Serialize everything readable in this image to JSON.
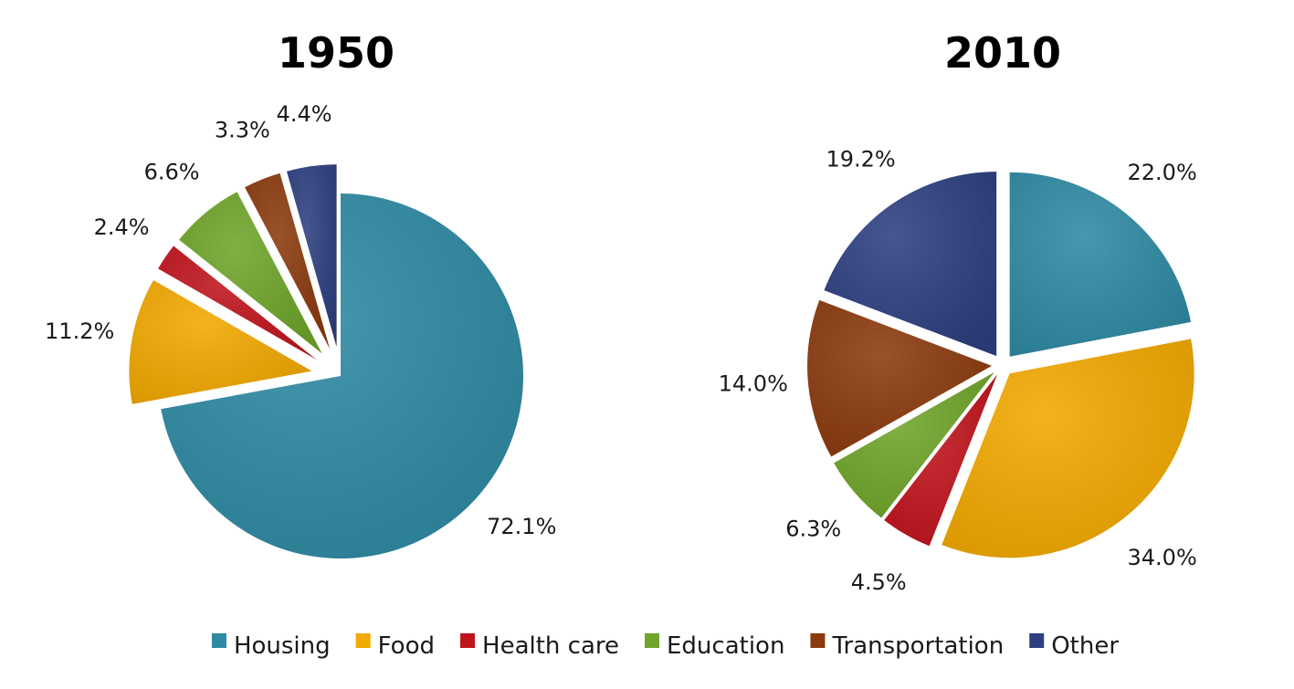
{
  "chart_data": [
    {
      "type": "pie",
      "title": "1950",
      "categories": [
        "Housing",
        "Food",
        "Health care",
        "Education",
        "Transportation",
        "Other"
      ],
      "values": [
        72.1,
        11.2,
        2.4,
        6.6,
        3.3,
        4.4
      ],
      "labels": [
        "72.1%",
        "11.2%",
        "2.4%",
        "6.6%",
        "3.3%",
        "4.4%"
      ],
      "exploded": [
        "Food",
        "Health care",
        "Education",
        "Transportation",
        "Other"
      ]
    },
    {
      "type": "pie",
      "title": "2010",
      "categories": [
        "Housing",
        "Food",
        "Health care",
        "Education",
        "Transportation",
        "Other"
      ],
      "values": [
        22.0,
        34.0,
        4.5,
        6.3,
        14.0,
        19.2
      ],
      "labels": [
        "22.0%",
        "34.0%",
        "4.5%",
        "6.3%",
        "14.0%",
        "19.2%"
      ],
      "exploded": [
        "Housing",
        "Food",
        "Health care",
        "Education",
        "Transportation",
        "Other"
      ]
    }
  ],
  "legend": {
    "placement": "bottom",
    "items": [
      {
        "label": "Housing",
        "color": "#2e8aa3"
      },
      {
        "label": "Food",
        "color": "#f2a900"
      },
      {
        "label": "Health care",
        "color": "#c0141c"
      },
      {
        "label": "Education",
        "color": "#6fa52a"
      },
      {
        "label": "Transportation",
        "color": "#8b3a0e"
      },
      {
        "label": "Other",
        "color": "#2d3f80"
      }
    ]
  }
}
